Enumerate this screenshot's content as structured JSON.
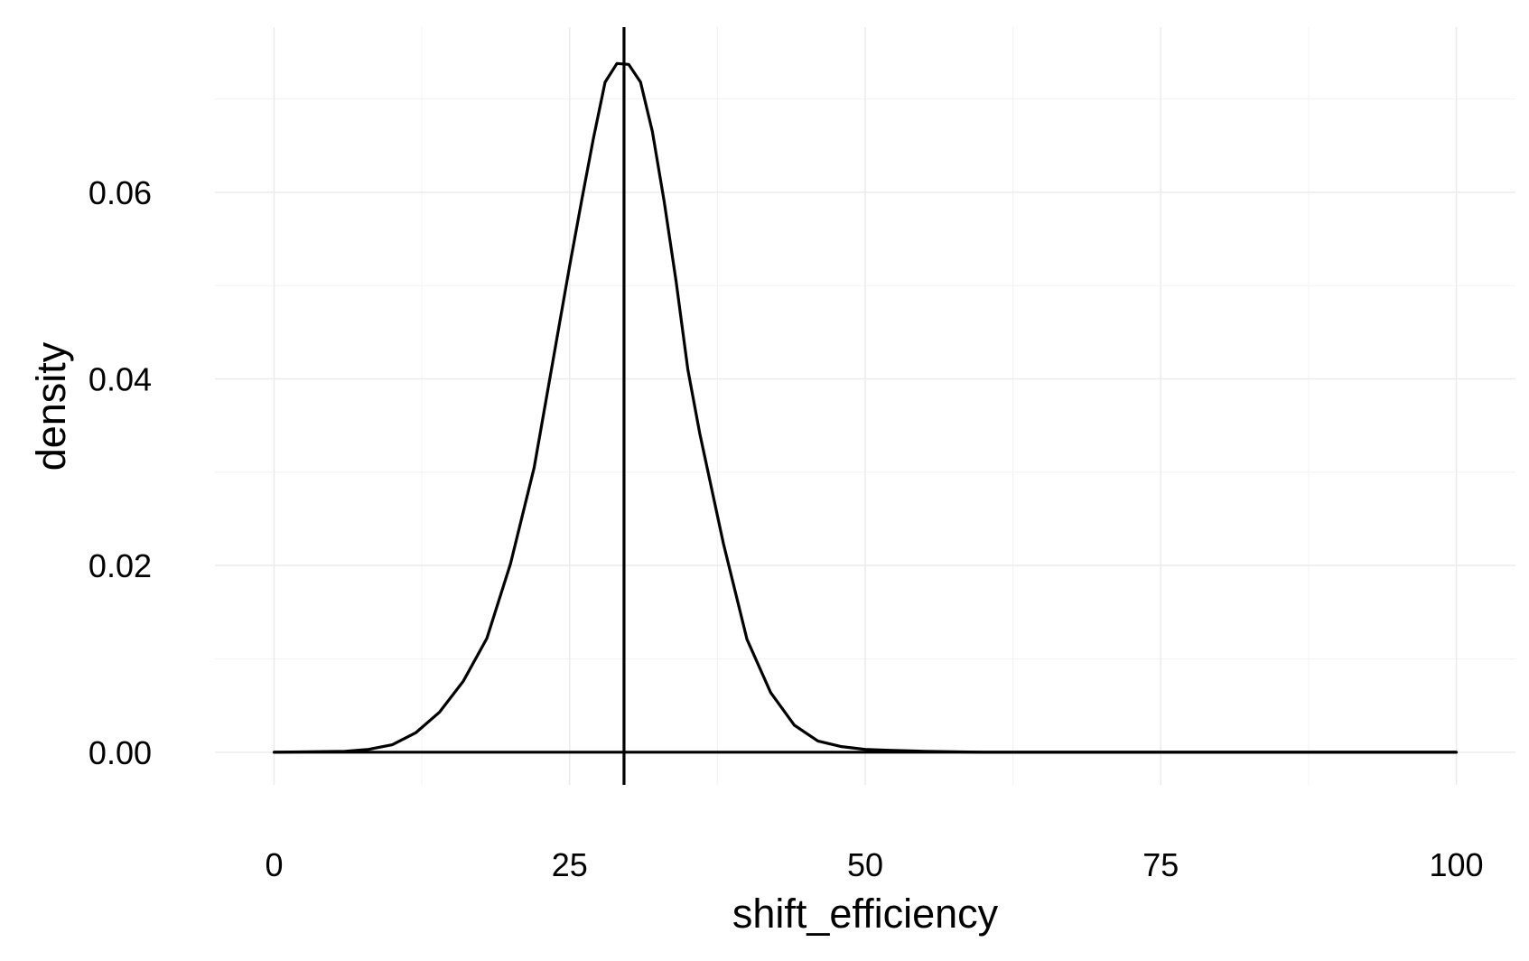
{
  "chart_data": {
    "type": "line",
    "title": "",
    "xlabel": "shift_efficiency",
    "ylabel": "density",
    "xlim": [
      -5,
      105
    ],
    "ylim": [
      -0.0035,
      0.0777
    ],
    "x_ticks": [
      0,
      25,
      50,
      75,
      100
    ],
    "x_tick_labels": [
      "0",
      "25",
      "50",
      "75",
      "100"
    ],
    "y_ticks": [
      0,
      0.02,
      0.04,
      0.06
    ],
    "y_tick_labels": [
      "0.00",
      "0.02",
      "0.04",
      "0.06"
    ],
    "grid": true,
    "legend": "none",
    "series": [
      {
        "x": [
          0,
          6,
          8,
          10,
          12,
          14,
          16,
          18,
          20,
          22,
          24,
          25,
          26,
          27,
          28,
          29,
          30,
          31,
          32,
          33,
          34,
          35,
          36,
          38,
          40,
          42,
          44,
          46,
          48,
          50,
          52,
          55,
          60,
          70,
          80,
          90,
          100
        ],
        "values": [
          0,
          0.0001,
          0.0003,
          0.0008,
          0.0021,
          0.0043,
          0.0076,
          0.0122,
          0.0202,
          0.0305,
          0.0449,
          0.0521,
          0.059,
          0.0657,
          0.0718,
          0.0738,
          0.0737,
          0.0718,
          0.0665,
          0.059,
          0.0505,
          0.041,
          0.0342,
          0.0224,
          0.0121,
          0.0064,
          0.0029,
          0.0012,
          0.0006,
          0.0003,
          0.0002,
          0.0001,
          0,
          0,
          0,
          0,
          0
        ]
      }
    ],
    "reference_lines": [
      {
        "type": "vline",
        "x": 29.6
      },
      {
        "type": "hline",
        "y": 0
      }
    ]
  },
  "colors": {
    "line": "#000000",
    "grid_major": "#ebebeb",
    "grid_minor": "#f4f4f4",
    "background": "#ffffff"
  }
}
